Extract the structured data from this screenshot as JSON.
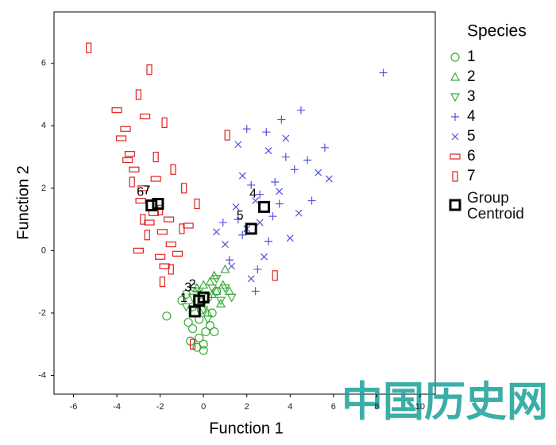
{
  "chart_data": {
    "type": "scatter",
    "x_label": "Function 1",
    "y_label": "Function 2",
    "xlim": [
      -6.9,
      10.7
    ],
    "ylim": [
      -4.6,
      7.65
    ],
    "xticks": [
      -6,
      -4,
      -2,
      0,
      2,
      4,
      6,
      8,
      10
    ],
    "yticks": [
      -4,
      -2,
      0,
      2,
      4,
      6
    ],
    "legend_title": "Species",
    "series": [
      {
        "name": "1",
        "color": "#3aaa3a",
        "marker": "circle",
        "x": [
          -0.8,
          -0.5,
          -0.2,
          0.1,
          0.4,
          -1.0,
          -0.6,
          -0.3,
          0.0,
          0.3,
          -0.4,
          -0.1,
          0.2,
          -0.7,
          0.5,
          -1.7,
          -0.2,
          0.6,
          -0.5,
          0.0
        ],
        "y": [
          -1.4,
          -1.8,
          -2.2,
          -2.6,
          -2.0,
          -1.6,
          -2.9,
          -3.1,
          -3.2,
          -2.4,
          -1.2,
          -1.9,
          -1.5,
          -2.3,
          -2.6,
          -2.1,
          -2.8,
          -1.3,
          -2.5,
          -3.0
        ]
      },
      {
        "name": "2",
        "color": "#3aaa3a",
        "marker": "triangle-up",
        "x": [
          0.3,
          0.6,
          -0.1,
          0.9,
          0.2,
          0.5,
          1.2,
          -0.3,
          0.8,
          0.4,
          1.0,
          0.0
        ],
        "y": [
          -1.0,
          -1.3,
          -1.6,
          -1.1,
          -2.0,
          -0.8,
          -1.3,
          -1.2,
          -1.7,
          -1.4,
          -0.6,
          -1.1
        ]
      },
      {
        "name": "3",
        "color": "#3aaa3a",
        "marker": "triangle-down",
        "x": [
          -0.5,
          0.0,
          0.4,
          0.8,
          -0.2,
          1.3,
          0.2,
          -0.8,
          0.6,
          1.0
        ],
        "y": [
          -1.5,
          -1.9,
          -1.2,
          -1.6,
          -1.3,
          -1.5,
          -2.2,
          -1.8,
          -0.9,
          -1.2
        ]
      },
      {
        "name": "4",
        "color": "#5050e0",
        "marker": "plus",
        "x": [
          1.6,
          2.2,
          2.9,
          3.5,
          4.2,
          5.0,
          3.0,
          2.5,
          3.8,
          4.5,
          1.2,
          2.0,
          3.3,
          4.8,
          8.3,
          1.8,
          2.6,
          3.6,
          5.6,
          0.9,
          2.4,
          3.2
        ],
        "y": [
          1.0,
          2.1,
          3.8,
          1.5,
          2.6,
          1.6,
          0.3,
          -0.6,
          3.0,
          4.5,
          -0.3,
          3.9,
          2.2,
          2.9,
          5.7,
          0.5,
          1.8,
          4.2,
          3.3,
          0.9,
          -1.3,
          1.1
        ]
      },
      {
        "name": "5",
        "color": "#5050e0",
        "marker": "cross",
        "x": [
          1.0,
          1.5,
          2.0,
          2.8,
          3.5,
          1.3,
          2.4,
          3.0,
          1.8,
          4.0,
          5.3,
          2.2,
          0.6,
          3.8,
          2.6,
          1.6,
          5.8,
          4.4
        ],
        "y": [
          0.2,
          1.4,
          0.7,
          -0.2,
          1.9,
          -0.5,
          1.6,
          3.2,
          2.4,
          0.4,
          2.5,
          -0.9,
          0.6,
          3.6,
          0.9,
          3.4,
          2.3,
          1.2
        ]
      },
      {
        "name": "6",
        "color": "#e02020",
        "marker": "rect-wide",
        "x": [
          -4.0,
          -3.6,
          -3.2,
          -2.8,
          -2.3,
          -1.9,
          -1.5,
          -3.4,
          -2.9,
          -2.5,
          -2.0,
          -1.6,
          -3.8,
          -1.2,
          -2.2,
          -3.0,
          -0.7,
          -2.7,
          -1.8,
          -3.5
        ],
        "y": [
          4.5,
          3.9,
          2.6,
          2.0,
          1.2,
          0.6,
          0.2,
          3.1,
          1.6,
          0.9,
          -0.2,
          1.0,
          3.6,
          -0.1,
          2.3,
          0.0,
          0.8,
          4.3,
          -0.5,
          2.9
        ]
      },
      {
        "name": "7",
        "color": "#e02020",
        "marker": "rect-tall",
        "x": [
          -5.3,
          -2.5,
          -3.0,
          -1.8,
          -2.2,
          -1.4,
          -0.9,
          -3.3,
          -2.0,
          -1.0,
          -2.6,
          -0.3,
          1.1,
          -1.5,
          -2.8,
          3.3,
          -0.5,
          -1.9
        ],
        "y": [
          6.5,
          5.8,
          5.0,
          4.1,
          3.0,
          2.6,
          2.0,
          2.2,
          1.3,
          0.7,
          0.5,
          1.5,
          3.7,
          -0.6,
          1.0,
          -0.8,
          -3.0,
          -1.0
        ]
      }
    ],
    "centroids": {
      "name": "Group Centroid",
      "color": "#000000",
      "labels": [
        "1",
        "2",
        "3",
        "4",
        "5",
        "6",
        "7"
      ],
      "x": [
        -0.4,
        0.0,
        -0.2,
        2.8,
        2.2,
        -2.4,
        -2.1
      ],
      "y": [
        -1.95,
        -1.5,
        -1.6,
        1.4,
        0.7,
        1.45,
        1.5
      ]
    }
  },
  "watermark": "中国历史网"
}
